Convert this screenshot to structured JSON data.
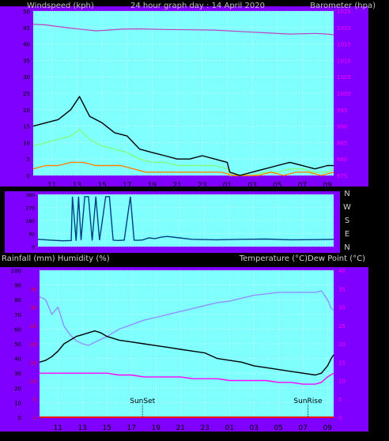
{
  "header": {
    "left_label": "Windspeed (kph)",
    "center_label": "24 hour graph day : 14 April 2020",
    "right_label": "Barometer (hpa)"
  },
  "middle": {
    "compass_labels": [
      "N",
      "W",
      "S",
      "E",
      "N"
    ]
  },
  "lower_header": {
    "left_label": "Rainfall (mm)  Humidity (%)",
    "right_label": "Temperature (°C)Dew Point (°C)"
  },
  "annotations": {
    "sunset": "SunSet",
    "sunrise": "SunRise"
  },
  "colors": {
    "plot_bg": "#80ffff",
    "panel_bg": "#8000ff",
    "grid": "#ffffff",
    "wind_gust": "#000000",
    "wind_avg": "#80ff80",
    "wind_low": "#ff8000",
    "barometer": "#c040c0",
    "direction": "#004080",
    "humidity": "#9090ff",
    "temperature": "#000000",
    "dewpoint": "#ff00ff",
    "rainfall": "#ff0000",
    "right_axis_text": "#ff00ff",
    "rain_axis_text": "#ff0000"
  },
  "chart_data": [
    {
      "type": "line",
      "name": "windspeed-barometer",
      "x_ticks": [
        "11",
        "13",
        "15",
        "17",
        "19",
        "21",
        "23",
        "01",
        "03",
        "05",
        "07",
        "09"
      ],
      "x_range_hours": [
        9.5,
        33.5
      ],
      "ylim_left": [
        0,
        50
      ],
      "yticks_left": [
        "0",
        "5",
        "10",
        "15",
        "20",
        "25",
        "30",
        "35",
        "40",
        "45",
        "50"
      ],
      "ylim_right": [
        975,
        1025
      ],
      "yticks_right": [
        "975",
        "980",
        "985",
        "990",
        "995",
        "1000",
        "1005",
        "1010",
        "1015",
        "1020",
        "1025"
      ],
      "series": [
        {
          "name": "gust",
          "x": [
            9.5,
            10.5,
            11.5,
            12.5,
            13.2,
            14,
            15,
            16,
            17,
            17.5,
            18,
            19,
            20,
            21,
            22,
            23,
            24,
            25,
            25.2,
            26,
            27,
            28,
            29,
            30,
            31,
            32,
            33,
            33.5
          ],
          "y": [
            15,
            16,
            17,
            20,
            24,
            18,
            16,
            13,
            12,
            10,
            8,
            7,
            6,
            5,
            5,
            6,
            5,
            4,
            1,
            0,
            1,
            2,
            3,
            4,
            3,
            2,
            3,
            3
          ]
        },
        {
          "name": "average",
          "x": [
            9.5,
            10.5,
            11.5,
            12.5,
            13.2,
            14,
            15,
            16,
            17,
            18,
            19,
            20,
            21,
            22,
            23,
            24,
            25,
            25.2,
            26,
            27,
            28,
            29,
            30,
            31,
            32,
            33,
            33.5
          ],
          "y": [
            9,
            10,
            11,
            12,
            14,
            11,
            9,
            8,
            7,
            5,
            4,
            4,
            3,
            3,
            3,
            3,
            2,
            0,
            0,
            0,
            1,
            1,
            2,
            2,
            1,
            1,
            2
          ]
        },
        {
          "name": "low",
          "x": [
            9.5,
            10.5,
            11.5,
            12.5,
            13.5,
            14.5,
            15.5,
            16.5,
            17.5,
            18.5,
            19.5,
            20.5,
            21.5,
            22.5,
            23.5,
            24.5,
            25.5,
            26.5,
            27.5,
            28.5,
            29.5,
            30.5,
            31.5,
            32.5,
            33.5
          ],
          "y": [
            2,
            3,
            3,
            4,
            4,
            3,
            3,
            3,
            2,
            1,
            1,
            1,
            1,
            1,
            1,
            1,
            0,
            0,
            0,
            1,
            0,
            1,
            1,
            0,
            1
          ]
        },
        {
          "name": "barometer",
          "x": [
            9.5,
            10.5,
            11.5,
            12.5,
            13.5,
            14.5,
            15.5,
            16.5,
            18,
            20,
            22,
            24,
            26,
            28,
            30,
            32,
            33,
            33.5
          ],
          "y": [
            1021,
            1020.8,
            1020.3,
            1019.8,
            1019.4,
            1019.0,
            1019.2,
            1019.5,
            1019.6,
            1019.4,
            1019.3,
            1019.2,
            1018.8,
            1018.4,
            1018.0,
            1018.2,
            1018.0,
            1017.8
          ]
        }
      ]
    },
    {
      "type": "line",
      "name": "wind-direction",
      "x_range_hours": [
        9.5,
        33.5
      ],
      "ylim": [
        0,
        360
      ],
      "yticks": [
        "0",
        "90",
        "180",
        "270",
        "360"
      ],
      "series": [
        {
          "name": "direction",
          "x": [
            9.5,
            10.5,
            11.5,
            12.2,
            12.3,
            12.6,
            12.8,
            13,
            13.3,
            13.6,
            13.9,
            14.2,
            14.5,
            15,
            15.3,
            15.6,
            16,
            16.5,
            17,
            17.3,
            17.6,
            18,
            18.5,
            19,
            19.5,
            20,
            21,
            22,
            24,
            26,
            28,
            30,
            32,
            33.5
          ],
          "y": [
            50,
            45,
            40,
            42,
            345,
            40,
            345,
            45,
            345,
            345,
            42,
            345,
            44,
            345,
            345,
            44,
            42,
            45,
            345,
            45,
            43,
            46,
            60,
            55,
            65,
            70,
            60,
            50,
            47,
            50,
            52,
            47,
            48,
            50
          ]
        }
      ]
    },
    {
      "type": "line",
      "name": "rainfall-humidity-temperature-dewpoint",
      "x_ticks": [
        "11",
        "13",
        "15",
        "17",
        "19",
        "21",
        "23",
        "01",
        "03",
        "05",
        "07",
        "09"
      ],
      "x_range_hours": [
        9.5,
        33.5
      ],
      "ylim_left": [
        0,
        100
      ],
      "yticks_left": [
        "0",
        "10",
        "20",
        "30",
        "40",
        "50",
        "60",
        "70",
        "80",
        "90",
        "100"
      ],
      "rain_ticks": [
        "0",
        "5",
        "10",
        "15",
        "20",
        "25",
        "30",
        "35"
      ],
      "ylim_right": [
        0,
        40
      ],
      "yticks_right": [
        "0",
        "5",
        "10",
        "15",
        "20",
        "25",
        "30",
        "35",
        "40"
      ],
      "sunset_hour": 17.9,
      "sunrise_hour": 31.4,
      "series": [
        {
          "name": "humidity",
          "x": [
            9.5,
            10,
            10.5,
            11,
            11.5,
            12,
            12.5,
            13,
            13.5,
            14,
            15,
            16,
            17,
            18,
            19,
            20,
            21,
            22,
            23,
            24,
            25,
            26,
            27,
            28,
            29,
            30,
            31,
            32,
            32.5,
            33,
            33.3,
            33.5
          ],
          "y": [
            82,
            80,
            70,
            75,
            62,
            56,
            52,
            50,
            49,
            51,
            55,
            60,
            63,
            66,
            68,
            70,
            72,
            74,
            76,
            78,
            79,
            81,
            83,
            84,
            85,
            85,
            85,
            85,
            86,
            80,
            74,
            73
          ]
        },
        {
          "name": "temperature",
          "x": [
            9.5,
            10,
            10.5,
            11,
            11.5,
            12,
            12.5,
            13,
            13.5,
            14,
            14.5,
            15,
            16,
            17,
            18,
            19,
            20,
            21,
            22,
            23,
            24,
            25,
            26,
            27,
            28,
            29,
            30,
            31,
            32,
            32.5,
            33,
            33.3,
            33.5
          ],
          "y": [
            15,
            15.5,
            16.5,
            18,
            20,
            21,
            22,
            22.5,
            23,
            23.5,
            23,
            22,
            21,
            20.5,
            20,
            19.5,
            19,
            18.5,
            18,
            17.5,
            16,
            15.5,
            15,
            14,
            13.5,
            13,
            12.5,
            12,
            11.5,
            12,
            14,
            16,
            17
          ]
        },
        {
          "name": "dewpoint",
          "x": [
            9.5,
            10,
            11,
            12,
            13,
            14,
            15,
            16,
            17,
            18,
            19,
            20,
            21,
            22,
            23,
            24,
            25,
            26,
            27,
            28,
            29,
            30,
            31,
            32,
            32.5,
            33,
            33.5
          ],
          "y": [
            12,
            12,
            12,
            12,
            12,
            12,
            12,
            11.5,
            11.5,
            11,
            11,
            11,
            11,
            10.5,
            10.5,
            10.5,
            10,
            10,
            10,
            10,
            9.5,
            9.5,
            9,
            9,
            9.5,
            11,
            12
          ]
        },
        {
          "name": "rainfall",
          "x": [
            9.5,
            33.5
          ],
          "y": [
            0,
            0
          ]
        }
      ]
    }
  ]
}
